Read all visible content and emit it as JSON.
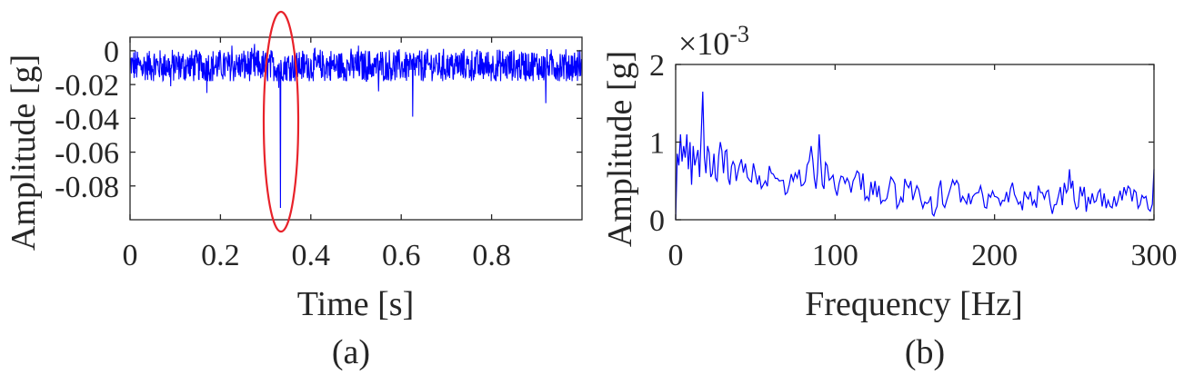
{
  "colors": {
    "signal": "#0000ff",
    "highlight": "#e8222a",
    "axis": "#262626"
  },
  "chart_data": [
    {
      "type": "line",
      "panel_label": "(a)",
      "xlabel": "Time [s]",
      "ylabel": "Amplitude [g]",
      "xlim": [
        0,
        1
      ],
      "ylim": [
        -0.1,
        0.008
      ],
      "xticks": [
        0,
        0.2,
        0.4,
        0.6,
        0.8
      ],
      "xtick_labels": [
        "0",
        "0.2",
        "0.4",
        "0.6",
        "0.8"
      ],
      "yticks": [
        0,
        -0.02,
        -0.04,
        -0.06,
        -0.08
      ],
      "ytick_labels": [
        "0",
        "-0.02",
        "-0.04",
        "-0.06",
        "-0.08"
      ],
      "grid": false,
      "box": true,
      "baseline": -0.009,
      "noise_band": [
        -0.018,
        0.002
      ],
      "spikes": [
        {
          "x": 0.333,
          "y": -0.093
        },
        {
          "x": 0.329,
          "y": -0.022
        },
        {
          "x": 0.09,
          "y": -0.021
        },
        {
          "x": 0.17,
          "y": -0.025
        },
        {
          "x": 0.55,
          "y": -0.024
        },
        {
          "x": 0.625,
          "y": -0.039
        },
        {
          "x": 0.92,
          "y": -0.031
        },
        {
          "x": 0.225,
          "y": 0.003
        },
        {
          "x": 0.275,
          "y": 0.004
        },
        {
          "x": 0.505,
          "y": 0.003
        }
      ],
      "annotation": {
        "shape": "ellipse",
        "x_center": 0.334,
        "y_center": -0.047,
        "description": "red ellipse around impulse"
      }
    },
    {
      "type": "line",
      "panel_label": "(b)",
      "xlabel": "Frequency [Hz]",
      "ylabel": "Amplitude [g]",
      "exponent_label": "×10",
      "exponent_power": "-3",
      "xlim": [
        0,
        300
      ],
      "ylim": [
        0,
        2
      ],
      "xticks": [
        0,
        100,
        200,
        300
      ],
      "xtick_labels": [
        "0",
        "100",
        "200",
        "300"
      ],
      "yticks": [
        0,
        1,
        2
      ],
      "ytick_labels": [
        "0",
        "1",
        "2"
      ],
      "grid": false,
      "box": true,
      "x": [
        0,
        1,
        2,
        3,
        4,
        5,
        6,
        7,
        8,
        9,
        10,
        11,
        12,
        13,
        14,
        15,
        16,
        17,
        18,
        19,
        20,
        22,
        24,
        26,
        28,
        30,
        32,
        34,
        36,
        38,
        40,
        45,
        50,
        55,
        60,
        65,
        70,
        75,
        80,
        85,
        88,
        90,
        92,
        95,
        100,
        105,
        110,
        115,
        120,
        125,
        130,
        135,
        140,
        145,
        150,
        155,
        160,
        162,
        165,
        170,
        175,
        180,
        185,
        190,
        195,
        200,
        205,
        210,
        215,
        220,
        225,
        230,
        235,
        240,
        245,
        247,
        250,
        255,
        260,
        265,
        270,
        275,
        280,
        285,
        290,
        295,
        299,
        300
      ],
      "y": [
        0.0,
        0.85,
        0.7,
        1.1,
        0.75,
        0.95,
        0.8,
        1.1,
        0.65,
        1.0,
        0.45,
        0.95,
        0.7,
        0.8,
        0.9,
        0.55,
        1.1,
        1.65,
        0.8,
        0.6,
        0.95,
        0.55,
        0.85,
        0.5,
        1.0,
        0.6,
        0.9,
        0.45,
        0.75,
        0.5,
        0.7,
        0.55,
        0.6,
        0.45,
        0.6,
        0.5,
        0.35,
        0.6,
        0.45,
        0.95,
        0.4,
        1.1,
        0.45,
        0.7,
        0.4,
        0.55,
        0.35,
        0.6,
        0.3,
        0.5,
        0.25,
        0.55,
        0.2,
        0.45,
        0.35,
        0.15,
        0.3,
        0.05,
        0.4,
        0.25,
        0.45,
        0.3,
        0.2,
        0.35,
        0.15,
        0.3,
        0.25,
        0.4,
        0.2,
        0.3,
        0.25,
        0.35,
        0.2,
        0.3,
        0.35,
        0.65,
        0.25,
        0.3,
        0.2,
        0.35,
        0.15,
        0.3,
        0.25,
        0.4,
        0.15,
        0.3,
        0.2,
        0.65
      ]
    }
  ]
}
